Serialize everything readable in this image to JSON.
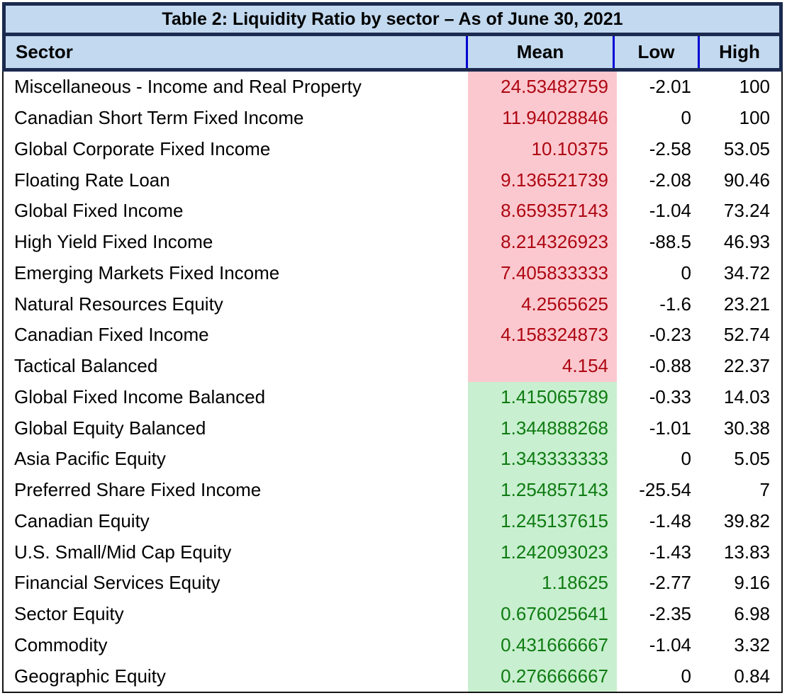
{
  "chart_data": {
    "type": "table",
    "title": "Table 2: Liquidity Ratio by sector – As of June 30, 2021",
    "columns": [
      "Sector",
      "Mean",
      "Low",
      "High"
    ],
    "rows": [
      {
        "sector": "Miscellaneous - Income and Real Property",
        "mean": "24.53482759",
        "low": "-2.01",
        "high": "100",
        "highlight": "red"
      },
      {
        "sector": "Canadian Short Term Fixed Income",
        "mean": "11.94028846",
        "low": "0",
        "high": "100",
        "highlight": "red"
      },
      {
        "sector": "Global Corporate Fixed Income",
        "mean": "10.10375",
        "low": "-2.58",
        "high": "53.05",
        "highlight": "red"
      },
      {
        "sector": "Floating Rate Loan",
        "mean": "9.136521739",
        "low": "-2.08",
        "high": "90.46",
        "highlight": "red"
      },
      {
        "sector": "Global Fixed Income",
        "mean": "8.659357143",
        "low": "-1.04",
        "high": "73.24",
        "highlight": "red"
      },
      {
        "sector": "High Yield Fixed Income",
        "mean": "8.214326923",
        "low": "-88.5",
        "high": "46.93",
        "highlight": "red"
      },
      {
        "sector": "Emerging Markets Fixed Income",
        "mean": "7.405833333",
        "low": "0",
        "high": "34.72",
        "highlight": "red"
      },
      {
        "sector": "Natural Resources Equity",
        "mean": "4.2565625",
        "low": "-1.6",
        "high": "23.21",
        "highlight": "red"
      },
      {
        "sector": "Canadian Fixed Income",
        "mean": "4.158324873",
        "low": "-0.23",
        "high": "52.74",
        "highlight": "red"
      },
      {
        "sector": "Tactical Balanced",
        "mean": "4.154",
        "low": "-0.88",
        "high": "22.37",
        "highlight": "red"
      },
      {
        "sector": "Global Fixed Income Balanced",
        "mean": "1.415065789",
        "low": "-0.33",
        "high": "14.03",
        "highlight": "green"
      },
      {
        "sector": "Global Equity Balanced",
        "mean": "1.344888268",
        "low": "-1.01",
        "high": "30.38",
        "highlight": "green"
      },
      {
        "sector": "Asia Pacific Equity",
        "mean": "1.343333333",
        "low": "0",
        "high": "5.05",
        "highlight": "green"
      },
      {
        "sector": "Preferred Share Fixed Income",
        "mean": "1.254857143",
        "low": "-25.54",
        "high": "7",
        "highlight": "green"
      },
      {
        "sector": "Canadian Equity",
        "mean": "1.245137615",
        "low": "-1.48",
        "high": "39.82",
        "highlight": "green"
      },
      {
        "sector": "U.S. Small/Mid Cap Equity",
        "mean": "1.242093023",
        "low": "-1.43",
        "high": "13.83",
        "highlight": "green"
      },
      {
        "sector": "Financial Services Equity",
        "mean": "1.18625",
        "low": "-2.77",
        "high": "9.16",
        "highlight": "green"
      },
      {
        "sector": "Sector Equity",
        "mean": "0.676025641",
        "low": "-2.35",
        "high": "6.98",
        "highlight": "green"
      },
      {
        "sector": "Commodity",
        "mean": "0.431666667",
        "low": "-1.04",
        "high": "3.32",
        "highlight": "green"
      },
      {
        "sector": "Geographic Equity",
        "mean": "0.276666667",
        "low": "0",
        "high": "0.84",
        "highlight": "green"
      }
    ],
    "legend_semantics": {
      "red": "higher mean liquidity ratio (pink fill, dark red text)",
      "green": "lower mean liquidity ratio (green fill, dark green text)"
    }
  },
  "colors": {
    "header_bg": "#c2d9ef",
    "frame_navy": "#1b2a4e",
    "divider_blue": "#0000d4",
    "body_border": "#141414",
    "mean_red_bg": "#fbc8cf",
    "mean_red_text": "#ae0712",
    "mean_green_bg": "#c8efcf",
    "mean_green_text": "#0e7b12",
    "text_black": "#000000"
  }
}
